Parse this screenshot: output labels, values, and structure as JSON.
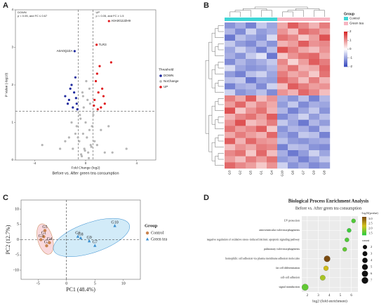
{
  "chart_data": [
    {
      "type": "volcano",
      "panel": "A",
      "xlabel": "Fold Change (log2)",
      "ylabel": "P Value (-log10)",
      "caption": "Before vs. After green tea consumption",
      "down_note": [
        "DOWN",
        "p < 0.05, and FC ≤ 0.67"
      ],
      "up_note": [
        "UP",
        "p < 0.05, and FC ≥ 1.5"
      ],
      "legend_title": "Threshold",
      "xlim": [
        -5.5,
        5.5
      ],
      "xticks": [
        -4,
        0,
        4
      ],
      "ylim": [
        0,
        4
      ],
      "yticks": [
        0,
        1,
        2,
        3,
        4
      ],
      "thresholds": {
        "x": [
          -0.58,
          0.58
        ],
        "y": 1.3
      },
      "series": [
        {
          "name": "DOWN",
          "color": "#1f2a9e",
          "x": [
            -0.86,
            -1.1,
            -0.9,
            -1.3,
            -0.7,
            -1.6,
            -0.8,
            -1.0,
            -1.2,
            -0.65,
            -1.4,
            -0.75
          ],
          "values": [
            2.9,
            2.0,
            1.8,
            1.6,
            1.5,
            1.7,
            2.2,
            1.4,
            1.9,
            1.35,
            1.5,
            1.65
          ],
          "point_labels": [
            "A0A0Q2ZA",
            null,
            null,
            null,
            null,
            null,
            null,
            null,
            null,
            null,
            null,
            null
          ]
        },
        {
          "name": "NoChange",
          "color": "#b5b5b5",
          "x": [
            -0.3,
            0.2,
            -0.1,
            0.4,
            -0.5,
            0.1,
            -0.2,
            0.3,
            0.0,
            -0.4,
            0.5,
            -0.6,
            0.7,
            -0.8,
            0.9,
            -1.0,
            1.2,
            -1.3,
            1.5,
            -1.6,
            -2.0,
            2.1,
            0.15,
            -0.25,
            0.35,
            -0.45,
            0.05,
            -0.15,
            0.25,
            -0.35,
            -3.4,
            3.2,
            1.8,
            -1.1,
            0.6,
            -0.7,
            0.45,
            -0.05,
            0.3,
            -0.2
          ],
          "values": [
            0.1,
            0.2,
            0.3,
            0.4,
            0.5,
            0.6,
            0.7,
            0.8,
            1.0,
            1.1,
            0.9,
            0.6,
            0.5,
            0.7,
            0.4,
            0.3,
            0.8,
            0.6,
            0.2,
            0.5,
            0.3,
            0.2,
            1.6,
            1.8,
            1.5,
            1.2,
            2.1,
            1.4,
            0.05,
            0.15,
            0.4,
            0.3,
            0.9,
            1.0,
            1.2,
            0.9,
            0.35,
            0.25,
            1.9,
            1.7
          ]
        },
        {
          "name": "UP",
          "color": "#e0181b",
          "x": [
            1.83,
            0.86,
            1.1,
            0.9,
            1.3,
            0.7,
            1.5,
            0.8,
            1.0,
            1.2,
            0.65,
            1.4,
            0.95,
            2.0
          ],
          "values": [
            3.7,
            3.07,
            2.5,
            2.3,
            1.9,
            1.6,
            1.5,
            2.1,
            1.8,
            1.4,
            1.45,
            1.7,
            1.35,
            2.6
          ],
          "point_labels": [
            "A0A0G2JZH9",
            "TLR3",
            null,
            null,
            null,
            null,
            null,
            null,
            null,
            null,
            null,
            null,
            null,
            null
          ]
        }
      ]
    },
    {
      "type": "heatmap",
      "panel": "B",
      "legend_title": "Group",
      "columns": [
        "G3",
        "G2",
        "G5",
        "G1",
        "G4",
        "G10",
        "G6",
        "G7",
        "G9",
        "G8"
      ],
      "column_groups": [
        0,
        0,
        0,
        0,
        0,
        1,
        1,
        1,
        1,
        1
      ],
      "groups": [
        {
          "name": "Control",
          "color": "#3fd6d6"
        },
        {
          "name": "Green tea",
          "color": "#f7b6c2"
        }
      ],
      "clim": [
        -2,
        2
      ],
      "colorbar_ticks": [
        2,
        1,
        0,
        -1,
        -2
      ],
      "colors": [
        "#3b4cc0",
        "#ffffff",
        "#d62728"
      ],
      "values": [
        [
          -1.2,
          -0.9,
          -1.4,
          -0.6,
          -1.0,
          0.8,
          1.5,
          1.1,
          0.7,
          1.2
        ],
        [
          -0.8,
          -1.3,
          -0.5,
          -1.1,
          -0.9,
          1.0,
          0.6,
          1.4,
          1.2,
          0.9
        ],
        [
          -1.5,
          -0.7,
          -1.0,
          -1.2,
          -0.4,
          1.3,
          1.1,
          0.5,
          0.9,
          1.6
        ],
        [
          -0.6,
          -1.1,
          -1.3,
          -0.8,
          -1.2,
          0.7,
          0.9,
          1.5,
          1.0,
          1.1
        ],
        [
          -1.0,
          -0.5,
          -0.9,
          -1.4,
          -0.7,
          1.6,
          1.2,
          0.8,
          0.6,
          1.0
        ],
        [
          -0.9,
          -1.2,
          -0.6,
          -0.3,
          -1.5,
          0.5,
          1.0,
          1.3,
          1.4,
          0.8
        ],
        [
          -1.3,
          -0.8,
          -1.1,
          -0.9,
          -0.6,
          1.1,
          0.4,
          0.9,
          1.5,
          1.2
        ],
        [
          -0.4,
          -1.0,
          -1.2,
          -1.1,
          -0.8,
          0.9,
          1.3,
          0.7,
          0.8,
          1.4
        ],
        [
          -1.1,
          -1.4,
          -0.7,
          -0.5,
          -1.0,
          1.2,
          0.8,
          1.0,
          0.5,
          1.3
        ],
        [
          -0.7,
          -0.6,
          -1.5,
          -1.0,
          -1.1,
          1.4,
          1.1,
          0.6,
          1.2,
          0.7
        ],
        [
          -1.4,
          -0.9,
          -0.8,
          -1.3,
          -0.5,
          0.6,
          1.5,
          1.2,
          0.9,
          1.0
        ],
        [
          -0.5,
          -1.2,
          -1.0,
          -0.7,
          -1.3,
          1.0,
          0.7,
          1.4,
          1.1,
          0.6
        ],
        [
          1.2,
          0.8,
          1.5,
          0.6,
          1.0,
          -0.9,
          -1.2,
          -0.7,
          -1.4,
          -0.8
        ],
        [
          0.9,
          1.4,
          0.7,
          1.1,
          0.8,
          -1.1,
          -0.6,
          -1.3,
          -0.9,
          -1.0
        ],
        [
          1.6,
          0.5,
          1.0,
          1.3,
          0.7,
          -0.8,
          -1.4,
          -1.0,
          -0.6,
          -1.2
        ],
        [
          0.7,
          1.1,
          1.3,
          0.9,
          1.5,
          -1.3,
          -0.9,
          -0.5,
          -1.1,
          -0.7
        ],
        [
          1.0,
          1.6,
          0.6,
          0.8,
          1.2,
          -0.6,
          -1.0,
          -1.5,
          -0.8,
          -1.1
        ],
        [
          1.3,
          0.9,
          1.1,
          1.5,
          0.5,
          -1.2,
          -0.8,
          -0.9,
          -1.3,
          -0.6
        ],
        [
          0.8,
          1.2,
          0.9,
          0.7,
          1.4,
          -1.0,
          -1.3,
          -0.6,
          -0.7,
          -1.4
        ],
        [
          1.5,
          0.7,
          1.4,
          1.0,
          0.9,
          -0.7,
          -1.1,
          -1.2,
          -1.0,
          -0.9
        ],
        [
          0.6,
          1.0,
          0.8,
          1.2,
          1.1,
          -1.4,
          -0.7,
          -0.8,
          -1.2,
          -1.3
        ],
        [
          1.1,
          1.3,
          0.5,
          1.4,
          0.6,
          -0.9,
          -1.5,
          -1.1,
          -0.5,
          -1.0
        ],
        [
          0.9,
          0.6,
          1.2,
          0.9,
          1.3,
          -1.1,
          -0.9,
          -1.4,
          -1.0,
          -0.6
        ],
        [
          1.4,
          1.1,
          0.9,
          0.5,
          1.0,
          -0.5,
          -1.2,
          -0.9,
          -1.3,
          -1.1
        ]
      ]
    },
    {
      "type": "pca",
      "panel": "C",
      "xlabel": "PC1 (48.4%)",
      "ylabel": "PC2 (12.7%)",
      "legend_title": "Group",
      "xlim": [
        -8,
        13
      ],
      "xticks": [
        -5,
        0,
        5,
        10
      ],
      "ylim": [
        -13,
        13
      ],
      "yticks": [
        -10,
        -5,
        0,
        5,
        10
      ],
      "series": [
        {
          "name": "Control",
          "color": "#c9844f",
          "fill": "#f6c9cf",
          "marker": "circle",
          "x": [
            -4.0,
            -3.5,
            -4.5,
            -3.0,
            -3.8
          ],
          "values": [
            1,
            -2,
            0,
            -1,
            3
          ],
          "point_labels": [
            "G1",
            "G2",
            "G3",
            "G4",
            "G5"
          ]
        },
        {
          "name": "Green tea",
          "color": "#3a8fd0",
          "fill": "#bfe3f5",
          "marker": "triangle",
          "x": [
            2.0,
            5.0,
            2.5,
            4.0,
            8.5
          ],
          "values": [
            1.0,
            -2.0,
            0.5,
            -0.5,
            4.5
          ],
          "point_labels": [
            "G6",
            "G7",
            "G8",
            "G9",
            "G10"
          ]
        }
      ]
    },
    {
      "type": "dotplot",
      "panel": "D",
      "title": "Biological Process Enrichment Analysis",
      "subtitle": "Before vs. After green tea consumption",
      "xlabel": "log2 (fold enrichment)",
      "categories": [
        "UV protection",
        "atrioventricular valve morphogenesis",
        "negative regulation of oxidative stress−induced intrinsic apoptotic signaling pathway",
        "pulmonary valve morphogenesis",
        "homophilic cell adhesion via plasma membrane adhesion molecules",
        "fat cell differentiation",
        "cell-cell adhesion",
        "signal transduction"
      ],
      "values": [
        6.2,
        5.8,
        5.6,
        5.4,
        3.8,
        3.7,
        3.4,
        1.8
      ],
      "sizes": [
        2,
        2,
        2,
        2,
        6,
        3,
        4,
        7
      ],
      "pvalues": [
        1.5,
        1.4,
        1.5,
        1.6,
        3.2,
        2.3,
        2.0,
        1.6
      ],
      "xlim": [
        1.5,
        6.6
      ],
      "xticks": [
        2,
        3,
        4,
        5,
        6
      ],
      "color_title": "−log10(pvalue)",
      "clim": [
        1.3,
        3.2
      ],
      "colorbar_ticks": [
        {
          "value": 3,
          "label": "3.0"
        },
        2.5,
        {
          "value": 2,
          "label": "2.0"
        },
        1.5
      ],
      "colors": [
        "#2ecc40",
        "#d4c21a",
        "#7a4b10"
      ],
      "size_title": "count",
      "size_legend": [
        2,
        3,
        4,
        5,
        6,
        7
      ]
    }
  ]
}
